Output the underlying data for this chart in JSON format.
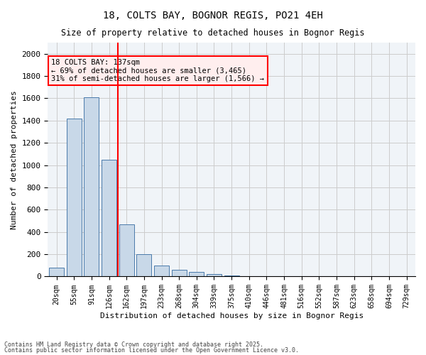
{
  "title1": "18, COLTS BAY, BOGNOR REGIS, PO21 4EH",
  "title2": "Size of property relative to detached houses in Bognor Regis",
  "xlabel": "Distribution of detached houses by size in Bognor Regis",
  "ylabel": "Number of detached properties",
  "categories": [
    "20sqm",
    "55sqm",
    "91sqm",
    "126sqm",
    "162sqm",
    "197sqm",
    "233sqm",
    "268sqm",
    "304sqm",
    "339sqm",
    "375sqm",
    "410sqm",
    "446sqm",
    "481sqm",
    "516sqm",
    "552sqm",
    "587sqm",
    "623sqm",
    "658sqm",
    "694sqm",
    "729sqm"
  ],
  "values": [
    80,
    1420,
    1610,
    1050,
    470,
    200,
    100,
    60,
    40,
    20,
    10,
    5,
    3,
    2,
    1,
    1,
    0,
    0,
    0,
    0,
    0
  ],
  "bar_color": "#c8d8e8",
  "bar_edge_color": "#4a7aaa",
  "grid_color": "#cccccc",
  "bg_color": "#f0f4f8",
  "annotation_text": "18 COLTS BAY: 137sqm\n← 69% of detached houses are smaller (3,465)\n31% of semi-detached houses are larger (1,566) →",
  "vline_x_index": 3,
  "vline_color": "red",
  "annotation_box_color": "#ffeeee",
  "annotation_box_edge": "red",
  "ylim": [
    0,
    2100
  ],
  "yticks": [
    0,
    200,
    400,
    600,
    800,
    1000,
    1200,
    1400,
    1600,
    1800,
    2000
  ],
  "footer1": "Contains HM Land Registry data © Crown copyright and database right 2025.",
  "footer2": "Contains public sector information licensed under the Open Government Licence v3.0."
}
